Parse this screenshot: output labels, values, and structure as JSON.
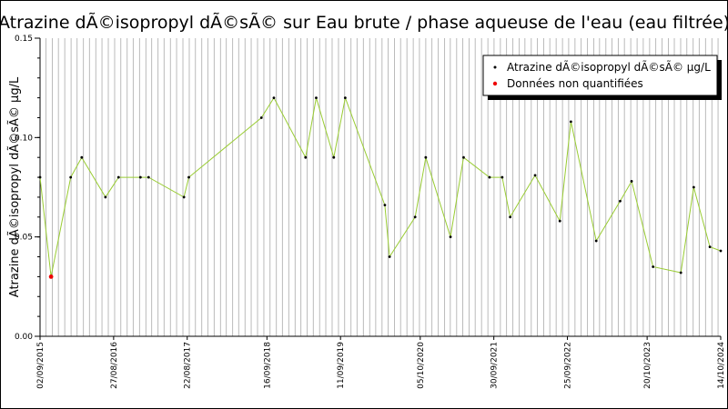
{
  "chart_data": {
    "type": "line",
    "title": "Atrazine dÃ©isopropyl dÃ©sÃ© sur Eau brute / phase aqueuse de l'eau (eau filtrée)",
    "xlabel": "",
    "ylabel": "Atrazine dÃ©isopropyl dÃ©sÃ© µg/L",
    "x_type": "date",
    "xlim": [
      "2015-09-02",
      "2024-10-14"
    ],
    "ylim": [
      0,
      0.15
    ],
    "y_ticks": [
      "0.00",
      "0.05",
      "0.10",
      "0.15"
    ],
    "x_ticks": [
      {
        "date": "2015-09-02",
        "label": "02/09/2015"
      },
      {
        "date": "2016-08-27",
        "label": "27/08/2016"
      },
      {
        "date": "2017-08-22",
        "label": "22/08/2017"
      },
      {
        "date": "2018-09-16",
        "label": "16/09/2018"
      },
      {
        "date": "2019-09-11",
        "label": "11/09/2019"
      },
      {
        "date": "2020-10-05",
        "label": "05/10/2020"
      },
      {
        "date": "2021-09-30",
        "label": "30/09/2021"
      },
      {
        "date": "2022-09-25",
        "label": "25/09/2022"
      },
      {
        "date": "2023-10-20",
        "label": "20/10/2023"
      },
      {
        "date": "2024-10-14",
        "label": "14/10/2024"
      }
    ],
    "grid": "vertical",
    "legend_position": "top-right",
    "colors": {
      "line": "#99cc33",
      "marker": "#000000",
      "non_quantified": "#ee0000",
      "grid": "#bbbbbb"
    },
    "series": [
      {
        "name": "Atrazine dÃ©isopropyl dÃ©sÃ© µg/L",
        "points": [
          {
            "x": "2015-09-02",
            "y": 0.08
          },
          {
            "x": "2015-10-26",
            "y": 0.03,
            "flag": "non_quantified"
          },
          {
            "x": "2016-01-30",
            "y": 0.08
          },
          {
            "x": "2016-03-24",
            "y": 0.09
          },
          {
            "x": "2016-07-18",
            "y": 0.07
          },
          {
            "x": "2016-09-20",
            "y": 0.08
          },
          {
            "x": "2017-01-05",
            "y": 0.08
          },
          {
            "x": "2017-02-14",
            "y": 0.08
          },
          {
            "x": "2017-08-06",
            "y": 0.07
          },
          {
            "x": "2017-08-30",
            "y": 0.08
          },
          {
            "x": "2018-08-20",
            "y": 0.11
          },
          {
            "x": "2018-10-20",
            "y": 0.12
          },
          {
            "x": "2019-03-24",
            "y": 0.09
          },
          {
            "x": "2019-05-15",
            "y": 0.12
          },
          {
            "x": "2019-08-09",
            "y": 0.09
          },
          {
            "x": "2019-10-04",
            "y": 0.12
          },
          {
            "x": "2020-04-15",
            "y": 0.066
          },
          {
            "x": "2020-05-08",
            "y": 0.04
          },
          {
            "x": "2020-09-10",
            "y": 0.06
          },
          {
            "x": "2020-11-01",
            "y": 0.09
          },
          {
            "x": "2021-03-02",
            "y": 0.05
          },
          {
            "x": "2021-05-05",
            "y": 0.09
          },
          {
            "x": "2021-09-09",
            "y": 0.08
          },
          {
            "x": "2021-11-10",
            "y": 0.08
          },
          {
            "x": "2021-12-19",
            "y": 0.06
          },
          {
            "x": "2022-04-20",
            "y": 0.081
          },
          {
            "x": "2022-08-19",
            "y": 0.058
          },
          {
            "x": "2022-10-12",
            "y": 0.108
          },
          {
            "x": "2023-02-13",
            "y": 0.048
          },
          {
            "x": "2023-06-10",
            "y": 0.068
          },
          {
            "x": "2023-08-05",
            "y": 0.078
          },
          {
            "x": "2023-11-18",
            "y": 0.035
          },
          {
            "x": "2024-04-02",
            "y": 0.032
          },
          {
            "x": "2024-06-04",
            "y": 0.075
          },
          {
            "x": "2024-08-22",
            "y": 0.045
          },
          {
            "x": "2024-10-14",
            "y": 0.043
          }
        ]
      }
    ],
    "legend": [
      {
        "label": "Atrazine dÃ©isopropyl dÃ©sÃ© µg/L",
        "kind": "series"
      },
      {
        "label": "Données non quantifiées",
        "kind": "non_quantified"
      }
    ]
  }
}
